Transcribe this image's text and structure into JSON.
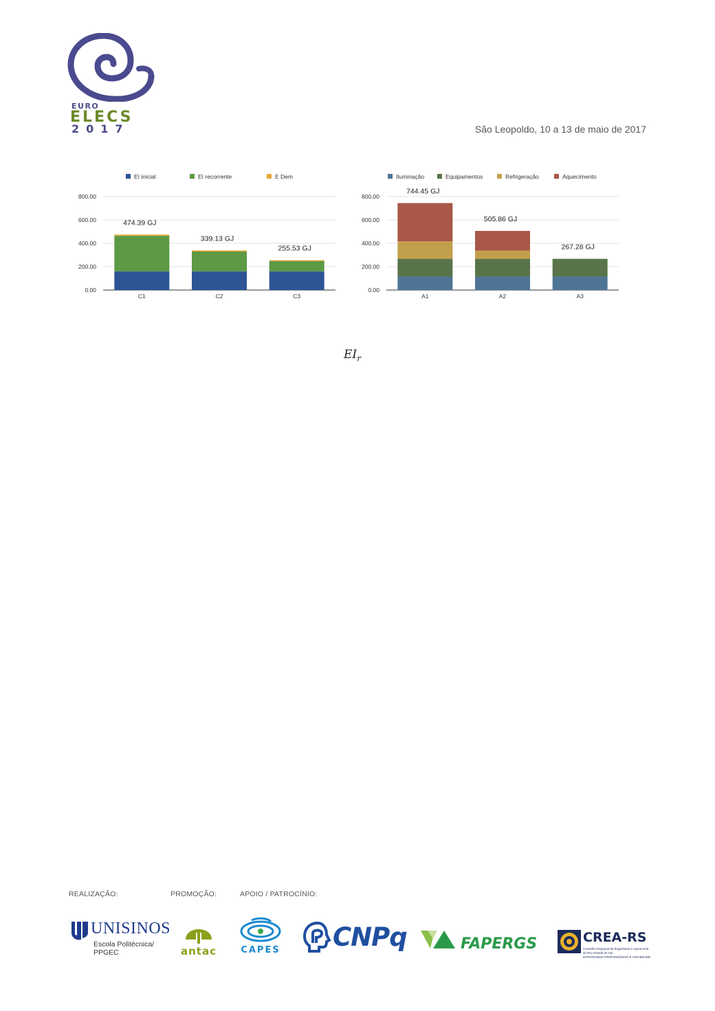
{
  "header": {
    "logo": {
      "top": "EURO",
      "middle": "ELECS",
      "bottom": "2017"
    },
    "event_text": "São Leopoldo, 10 a 13 de maio de 2017"
  },
  "formula": {
    "base": "EI",
    "subscript": "r"
  },
  "chart_data": [
    {
      "type": "bar",
      "stacked": true,
      "categories": [
        "C1",
        "C2",
        "C3"
      ],
      "series": [
        {
          "name": "EI inicial",
          "color": "#2d5595",
          "values": [
            160,
            160,
            160
          ]
        },
        {
          "name": "EI recorrente",
          "color": "#5c9a45",
          "values": [
            303.9,
            169.5,
            86.9
          ]
        },
        {
          "name": "E Dem",
          "color": "#e8a838",
          "values": [
            10.49,
            9.63,
            8.63
          ]
        }
      ],
      "totals": [
        "474.39 GJ",
        "339.13 GJ",
        "255.53 GJ"
      ],
      "y_ticks": [
        "0.00",
        "200.00",
        "400.00",
        "600.00",
        "800.00"
      ],
      "ylim": [
        0,
        800
      ],
      "grid": true,
      "legend_position": "top"
    },
    {
      "type": "bar",
      "stacked": true,
      "categories": [
        "A1",
        "A2",
        "A3"
      ],
      "series": [
        {
          "name": "Iluminação",
          "color": "#4f7596",
          "values": [
            115,
            115,
            115
          ]
        },
        {
          "name": "Equipamentos",
          "color": "#59744a",
          "values": [
            152.28,
            152.28,
            152.28
          ]
        },
        {
          "name": "Refrigeração",
          "color": "#c29f4d",
          "values": [
            150,
            70,
            0
          ]
        },
        {
          "name": "Aquecimento",
          "color": "#a95847",
          "values": [
            327.17,
            168.58,
            0
          ]
        }
      ],
      "totals": [
        "744.45 GJ",
        "505.86 GJ",
        "267.28 GJ"
      ],
      "y_ticks": [
        "0.00",
        "200.00",
        "400.00",
        "600.00",
        "800.00"
      ],
      "ylim": [
        0,
        800
      ],
      "grid": true,
      "legend_position": "top"
    }
  ],
  "footer": {
    "labels": {
      "realizacao": "REALIZAÇÃO:",
      "promocao": "PROMOÇÃO:",
      "apoio": "APOIO / PATROCÍNIO:"
    },
    "sponsors": {
      "unisinos": {
        "name": "UNISINOS",
        "sub_line1": "Escola Politécnica/",
        "sub_line2": "PPGEC"
      },
      "antac": "antac",
      "capes": "CAPES",
      "cnpq": "CNPq",
      "fapergs": "FAPERGS",
      "crea": {
        "name": "CREA-RS",
        "sub_line1": "Conselho Regional de Engenharia e Agronomia",
        "sub_line2": "do Rio Grande do Sul",
        "sub_line3": "INTEGRANDO PROFISSIONAIS E SOCIEDADE"
      }
    }
  }
}
